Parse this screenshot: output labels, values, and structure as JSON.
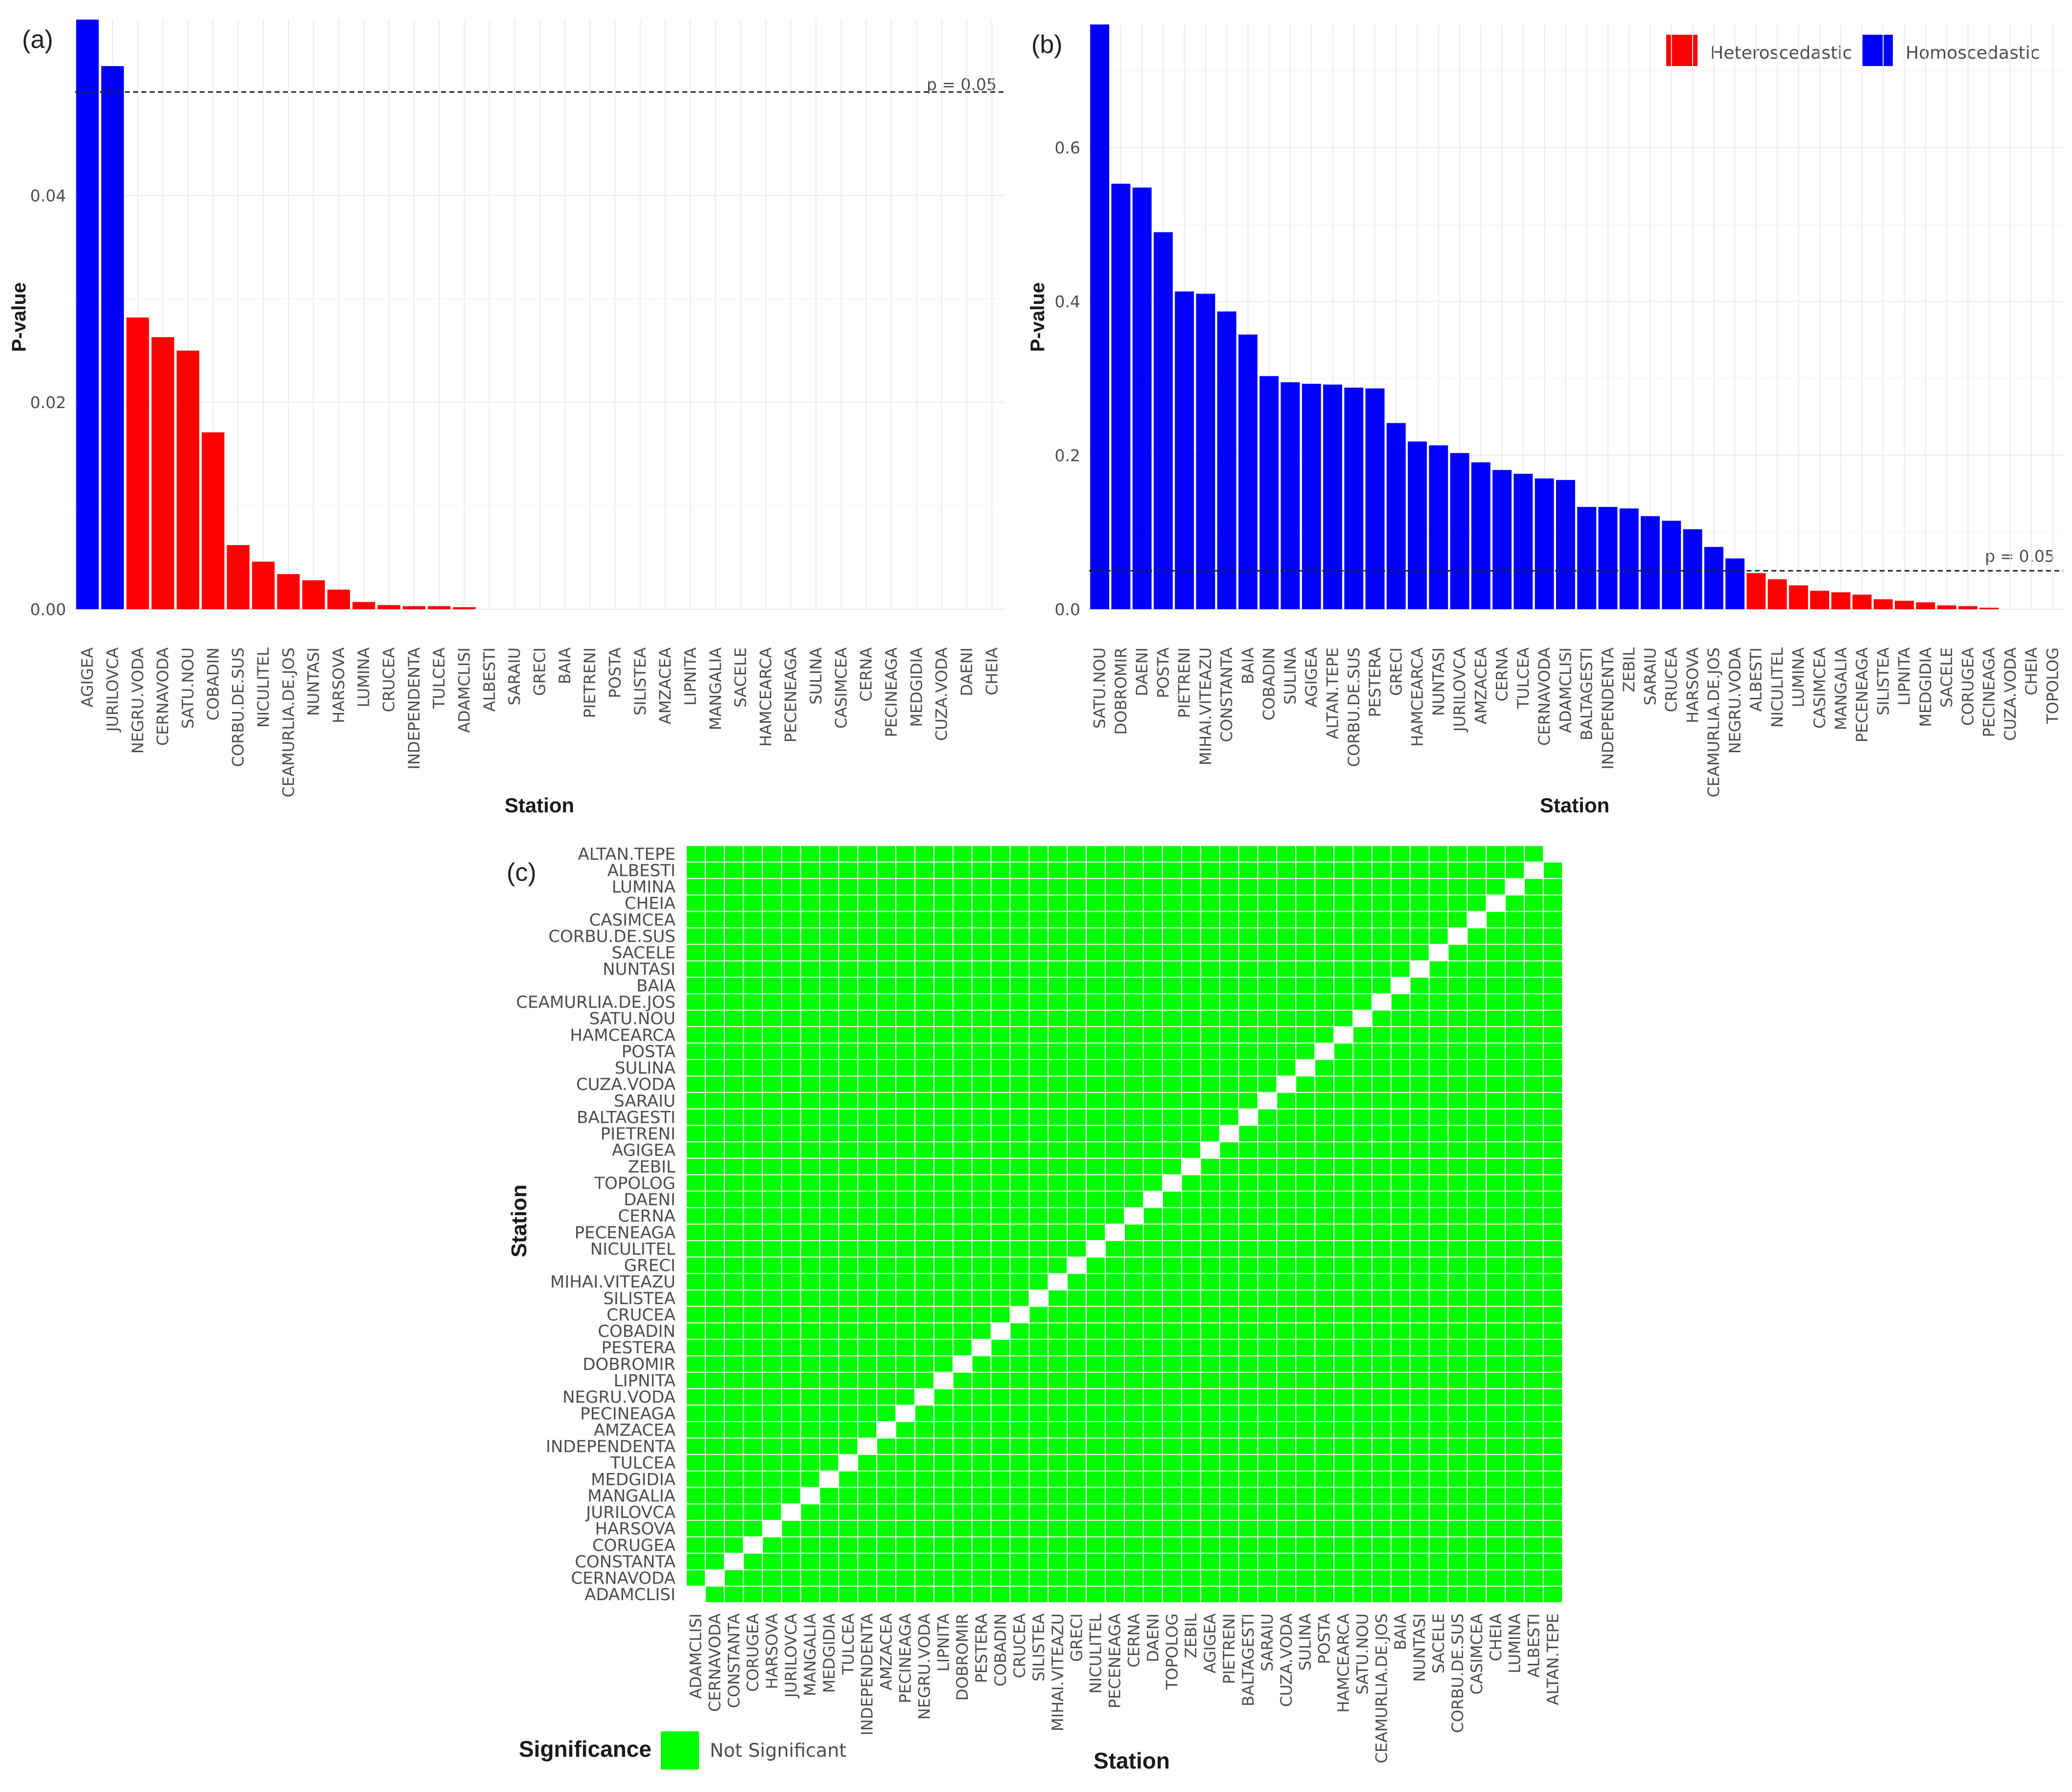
{
  "colors": {
    "heteroscedastic": "#ff0000",
    "homoscedastic": "#0000ff",
    "not_significant": "#00ff00",
    "diagonal": "#ffffff"
  },
  "chart_data": [
    {
      "panel_label": "(a)",
      "type": "bar",
      "xlabel": "Station",
      "ylabel": "P-value",
      "ylim": [
        0,
        0.057
      ],
      "yticks": [
        "0.00",
        "0.02",
        "0.04"
      ],
      "grid": true,
      "reference_line": {
        "value": 0.05,
        "label": "p = 0.05"
      },
      "categories": [
        "AGIGEA",
        "JURILOVCA",
        "NEGRU.VODA",
        "CERNAVODA",
        "SATU.NOU",
        "COBADIN",
        "CORBU.DE.SUS",
        "NICULITEL",
        "CEAMURLIA.DE.JOS",
        "NUNTASI",
        "HARSOVA",
        "LUMINA",
        "CRUCEA",
        "INDEPENDENTA",
        "TULCEA",
        "ADAMCLISI",
        "ALBESTI",
        "SARAIU",
        "GRECI",
        "BAIA",
        "PIETRENI",
        "POSTA",
        "SILISTEA",
        "AMZACEA",
        "LIPNITA",
        "MANGALIA",
        "SACELE",
        "HAMCEARCA",
        "PECENEAGA",
        "SULINA",
        "CASIMCEA",
        "CERNA",
        "PECINEAGA",
        "MEDGIDIA",
        "CUZA.VODA",
        "DAENI",
        "CHEIA"
      ],
      "values": [
        0.057,
        0.0525,
        0.0282,
        0.0263,
        0.025,
        0.0171,
        0.0062,
        0.0046,
        0.0034,
        0.0028,
        0.0019,
        0.0007,
        0.0004,
        0.0003,
        0.0003,
        0.0002,
        0,
        0,
        0,
        0,
        0,
        0,
        0,
        0,
        0,
        0,
        0,
        0,
        0,
        0,
        0,
        0,
        0,
        0,
        0,
        0,
        0
      ],
      "groups": [
        "Homoscedastic",
        "Homoscedastic",
        "Heteroscedastic",
        "Heteroscedastic",
        "Heteroscedastic",
        "Heteroscedastic",
        "Heteroscedastic",
        "Heteroscedastic",
        "Heteroscedastic",
        "Heteroscedastic",
        "Heteroscedastic",
        "Heteroscedastic",
        "Heteroscedastic",
        "Heteroscedastic",
        "Heteroscedastic",
        "Heteroscedastic",
        "Heteroscedastic",
        "Heteroscedastic",
        "Heteroscedastic",
        "Heteroscedastic",
        "Heteroscedastic",
        "Heteroscedastic",
        "Heteroscedastic",
        "Heteroscedastic",
        "Heteroscedastic",
        "Heteroscedastic",
        "Heteroscedastic",
        "Heteroscedastic",
        "Heteroscedastic",
        "Heteroscedastic",
        "Heteroscedastic",
        "Heteroscedastic",
        "Heteroscedastic",
        "Heteroscedastic",
        "Heteroscedastic",
        "Heteroscedastic",
        "Heteroscedastic"
      ]
    },
    {
      "panel_label": "(b)",
      "type": "bar",
      "xlabel": "Station",
      "ylabel": "P-value",
      "ylim": [
        0,
        0.76
      ],
      "yticks": [
        "0.0",
        "0.2",
        "0.4",
        "0.6"
      ],
      "grid": true,
      "legend": {
        "position": "top-right",
        "entries": [
          "Heteroscedastic",
          "Homoscedastic"
        ]
      },
      "reference_line": {
        "value": 0.05,
        "label": "p = 0.05"
      },
      "categories": [
        "SATU.NOU",
        "DOBROMIR",
        "DAENI",
        "POSTA",
        "PIETRENI",
        "MIHAI.VITEAZU",
        "CONSTANTA",
        "BAIA",
        "COBADIN",
        "SULINA",
        "AGIGEA",
        "ALTAN.TEPE",
        "CORBU.DE.SUS",
        "PESTERA",
        "GRECI",
        "HAMCEARCA",
        "NUNTASI",
        "JURILOVCA",
        "AMZACEA",
        "CERNA",
        "TULCEA",
        "CERNAVODA",
        "ADAMCLISI",
        "BALTAGESTI",
        "INDEPENDENTA",
        "ZEBIL",
        "SARAIU",
        "CRUCEA",
        "HARSOVA",
        "CEAMURLIA.DE.JOS",
        "NEGRU.VODA",
        "ALBESTI",
        "NICULITEL",
        "LUMINA",
        "CASIMCEA",
        "MANGALIA",
        "PECENEAGA",
        "SILISTEA",
        "LIPNITA",
        "MEDGIDIA",
        "SACELE",
        "CORUGEA",
        "PECINEAGA",
        "CUZA.VODA",
        "CHEIA",
        "TOPOLOG"
      ],
      "values": [
        0.76,
        0.553,
        0.548,
        0.49,
        0.413,
        0.41,
        0.387,
        0.357,
        0.303,
        0.295,
        0.293,
        0.292,
        0.288,
        0.287,
        0.242,
        0.218,
        0.213,
        0.203,
        0.191,
        0.181,
        0.176,
        0.17,
        0.168,
        0.133,
        0.133,
        0.131,
        0.121,
        0.115,
        0.104,
        0.081,
        0.066,
        0.047,
        0.039,
        0.031,
        0.024,
        0.022,
        0.019,
        0.013,
        0.011,
        0.009,
        0.005,
        0.004,
        0.002,
        0,
        0,
        0
      ],
      "groups": [
        "Homoscedastic",
        "Homoscedastic",
        "Homoscedastic",
        "Homoscedastic",
        "Homoscedastic",
        "Homoscedastic",
        "Homoscedastic",
        "Homoscedastic",
        "Homoscedastic",
        "Homoscedastic",
        "Homoscedastic",
        "Homoscedastic",
        "Homoscedastic",
        "Homoscedastic",
        "Homoscedastic",
        "Homoscedastic",
        "Homoscedastic",
        "Homoscedastic",
        "Homoscedastic",
        "Homoscedastic",
        "Homoscedastic",
        "Homoscedastic",
        "Homoscedastic",
        "Homoscedastic",
        "Homoscedastic",
        "Homoscedastic",
        "Homoscedastic",
        "Homoscedastic",
        "Homoscedastic",
        "Homoscedastic",
        "Homoscedastic",
        "Heteroscedastic",
        "Heteroscedastic",
        "Heteroscedastic",
        "Heteroscedastic",
        "Heteroscedastic",
        "Heteroscedastic",
        "Heteroscedastic",
        "Heteroscedastic",
        "Heteroscedastic",
        "Heteroscedastic",
        "Heteroscedastic",
        "Heteroscedastic",
        "Heteroscedastic",
        "Heteroscedastic",
        "Heteroscedastic"
      ]
    },
    {
      "panel_label": "(c)",
      "type": "heatmap",
      "xlabel": "Station",
      "ylabel": "Station",
      "legend": {
        "title": "Significance",
        "entries": [
          "Not Significant"
        ],
        "position": "bottom-left"
      },
      "diagonal": "blank",
      "cell_value": "Not Significant",
      "x_categories": [
        "ADAMCLISI",
        "CERNAVODA",
        "CONSTANTA",
        "CORUGEA",
        "HARSOVA",
        "JURILOVCA",
        "MANGALIA",
        "MEDGIDIA",
        "TULCEA",
        "INDEPENDENTA",
        "AMZACEA",
        "PECINEAGA",
        "NEGRU.VODA",
        "LIPNITA",
        "DOBROMIR",
        "PESTERA",
        "COBADIN",
        "CRUCEA",
        "SILISTEA",
        "MIHAI.VITEAZU",
        "GRECI",
        "NICULITEL",
        "PECENEAGA",
        "CERNA",
        "DAENI",
        "TOPOLOG",
        "ZEBIL",
        "AGIGEA",
        "PIETRENI",
        "BALTAGESTI",
        "SARAIU",
        "CUZA.VODA",
        "SULINA",
        "POSTA",
        "HAMCEARCA",
        "SATU.NOU",
        "CEAMURLIA.DE.JOS",
        "BAIA",
        "NUNTASI",
        "SACELE",
        "CORBU.DE.SUS",
        "CASIMCEA",
        "CHEIA",
        "LUMINA",
        "ALBESTI",
        "ALTAN.TEPE"
      ],
      "y_categories": [
        "ADAMCLISI",
        "CERNAVODA",
        "CONSTANTA",
        "CORUGEA",
        "HARSOVA",
        "JURILOVCA",
        "MANGALIA",
        "MEDGIDIA",
        "TULCEA",
        "INDEPENDENTA",
        "AMZACEA",
        "PECINEAGA",
        "NEGRU.VODA",
        "LIPNITA",
        "DOBROMIR",
        "PESTERA",
        "COBADIN",
        "CRUCEA",
        "SILISTEA",
        "MIHAI.VITEAZU",
        "GRECI",
        "NICULITEL",
        "PECENEAGA",
        "CERNA",
        "DAENI",
        "TOPOLOG",
        "ZEBIL",
        "AGIGEA",
        "PIETRENI",
        "BALTAGESTI",
        "SARAIU",
        "CUZA.VODA",
        "SULINA",
        "POSTA",
        "HAMCEARCA",
        "SATU.NOU",
        "CEAMURLIA.DE.JOS",
        "BAIA",
        "NUNTASI",
        "SACELE",
        "CORBU.DE.SUS",
        "CASIMCEA",
        "CHEIA",
        "LUMINA",
        "ALBESTI",
        "ALTAN.TEPE"
      ]
    }
  ]
}
